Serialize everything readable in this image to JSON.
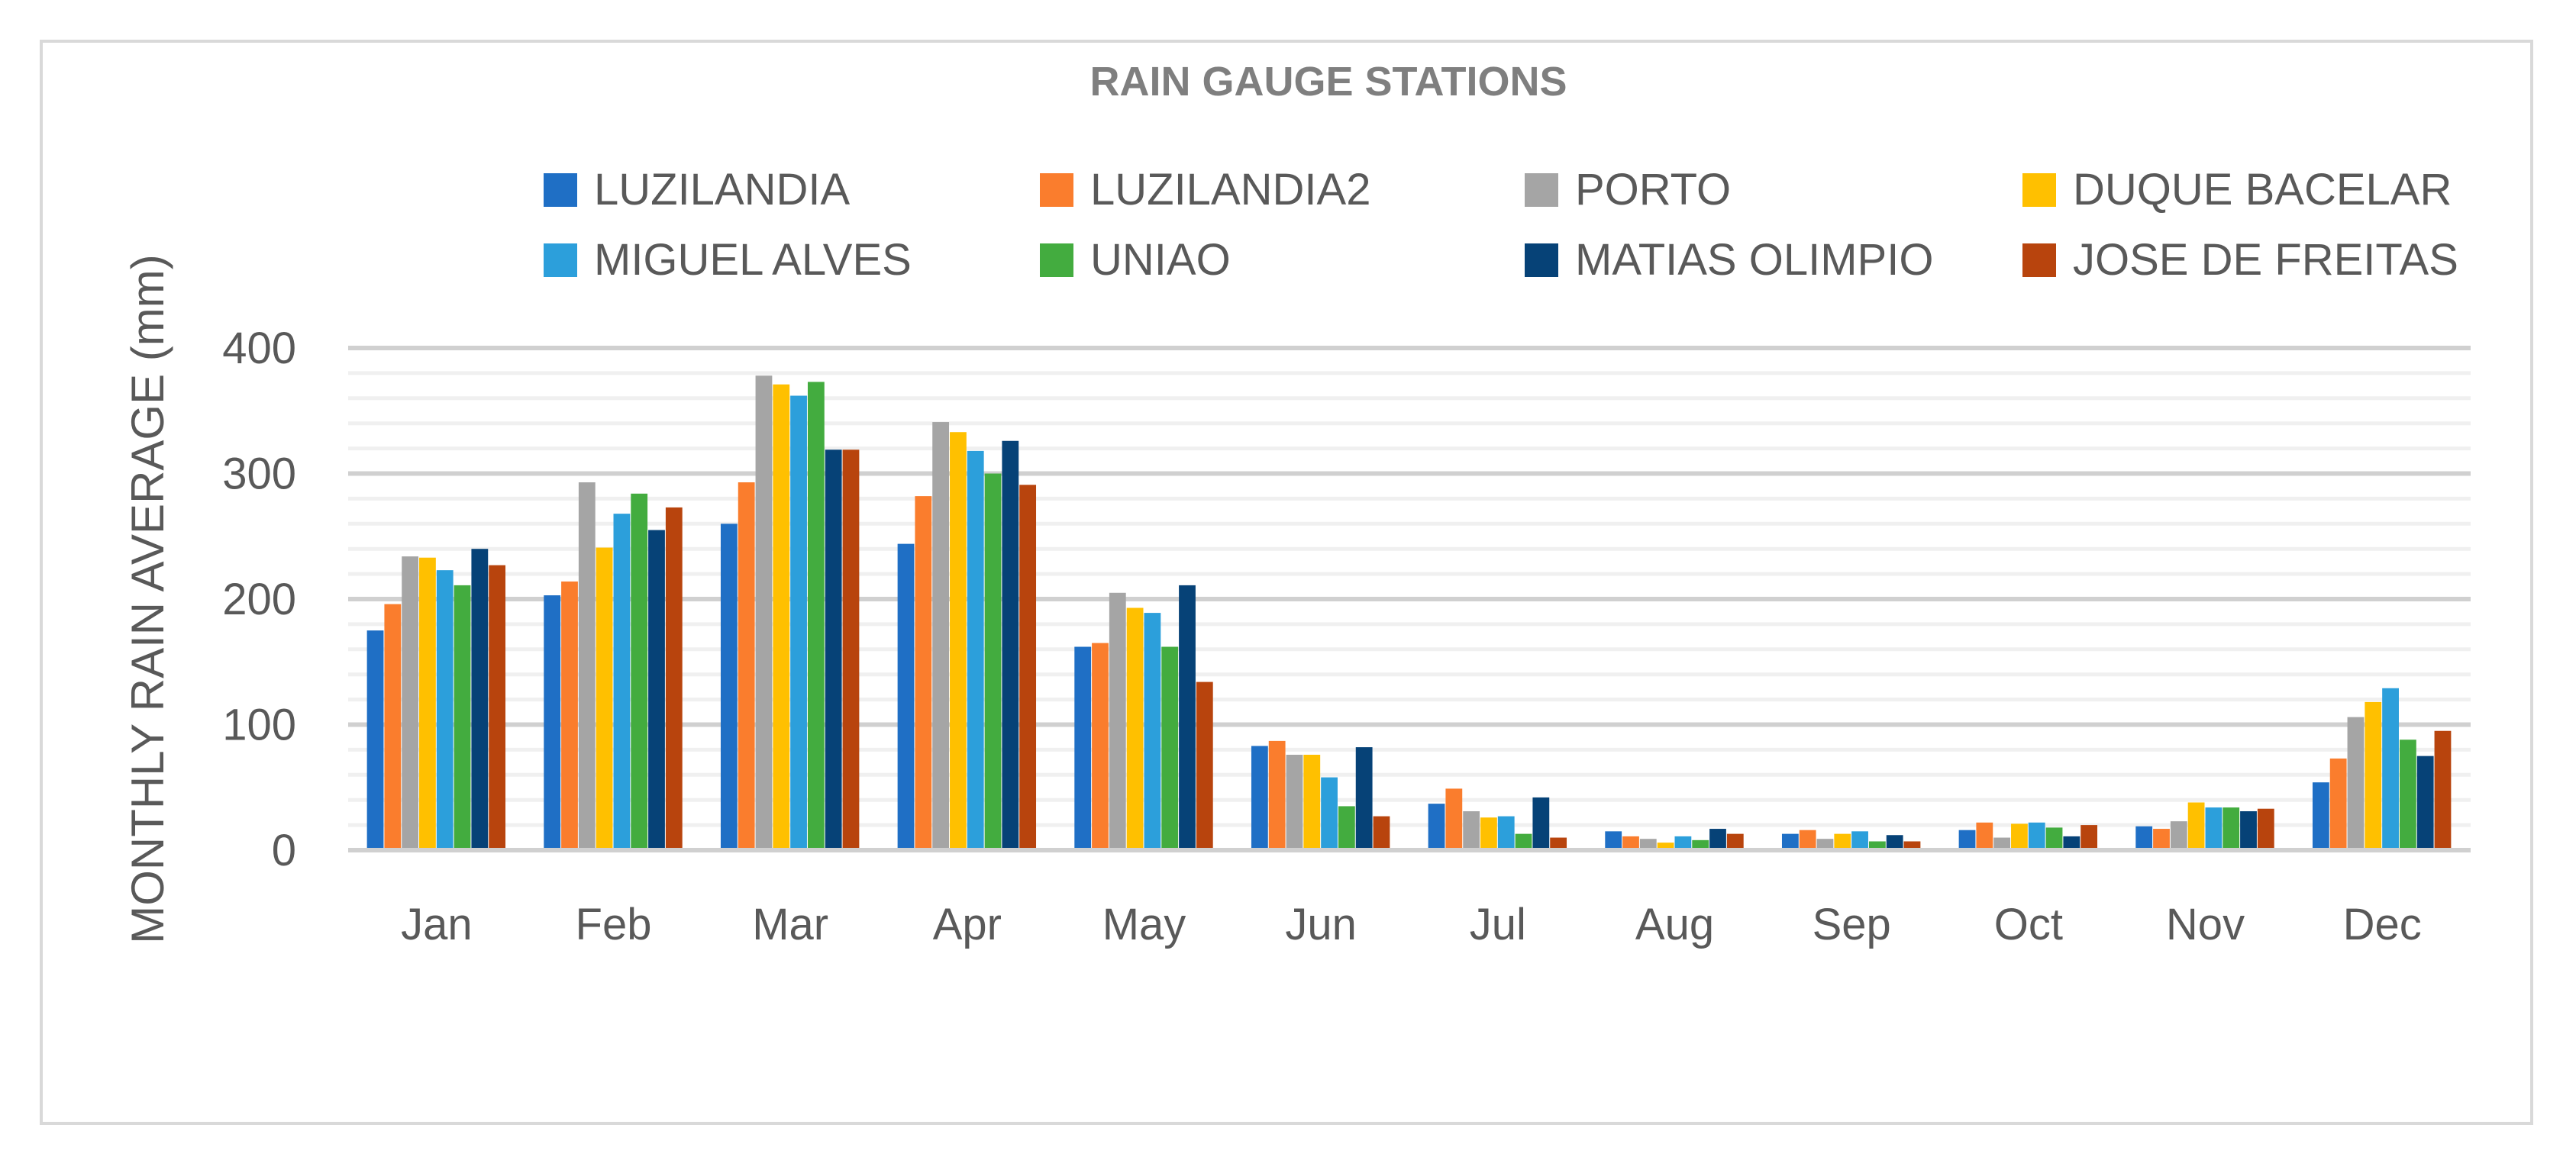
{
  "chart_data": {
    "type": "bar",
    "title": "RAIN GAUGE STATIONS",
    "ylabel": "MONTHLY RAIN AVERAGE (mm)",
    "xlabel": "",
    "ylim": [
      0,
      400
    ],
    "yticks": [
      0,
      100,
      200,
      300,
      400
    ],
    "grid": true,
    "legend_position": "top",
    "categories": [
      "Jan",
      "Feb",
      "Mar",
      "Apr",
      "May",
      "Jun",
      "Jul",
      "Aug",
      "Sep",
      "Oct",
      "Nov",
      "Dec"
    ],
    "series": [
      {
        "name": "LUZILANDIA",
        "color": "#1f6fc5",
        "values": [
          175,
          203,
          260,
          244,
          162,
          83,
          37,
          15,
          13,
          16,
          19,
          54
        ]
      },
      {
        "name": "LUZILANDIA2",
        "color": "#fa7d2d",
        "values": [
          196,
          214,
          293,
          282,
          165,
          87,
          49,
          11,
          16,
          22,
          17,
          73
        ]
      },
      {
        "name": "PORTO",
        "color": "#a5a5a5",
        "values": [
          234,
          293,
          378,
          341,
          205,
          76,
          31,
          9,
          9,
          10,
          23,
          106
        ]
      },
      {
        "name": "DUQUE BACELAR",
        "color": "#ffc000",
        "values": [
          233,
          241,
          371,
          333,
          193,
          76,
          26,
          6,
          13,
          21,
          38,
          118
        ]
      },
      {
        "name": "MIGUEL ALVES",
        "color": "#2c9fdb",
        "values": [
          223,
          268,
          362,
          318,
          189,
          58,
          27,
          11,
          15,
          22,
          34,
          129
        ]
      },
      {
        "name": "UNIAO",
        "color": "#43ac3f",
        "values": [
          211,
          284,
          373,
          300,
          162,
          35,
          13,
          8,
          7,
          18,
          34,
          88
        ]
      },
      {
        "name": "MATIAS OLIMPIO",
        "color": "#064277",
        "values": [
          240,
          255,
          319,
          326,
          211,
          82,
          42,
          17,
          12,
          11,
          31,
          75
        ]
      },
      {
        "name": "JOSE DE FREITAS",
        "color": "#b8440d",
        "values": [
          227,
          273,
          319,
          291,
          134,
          27,
          10,
          13,
          7,
          20,
          33,
          95
        ]
      }
    ]
  }
}
